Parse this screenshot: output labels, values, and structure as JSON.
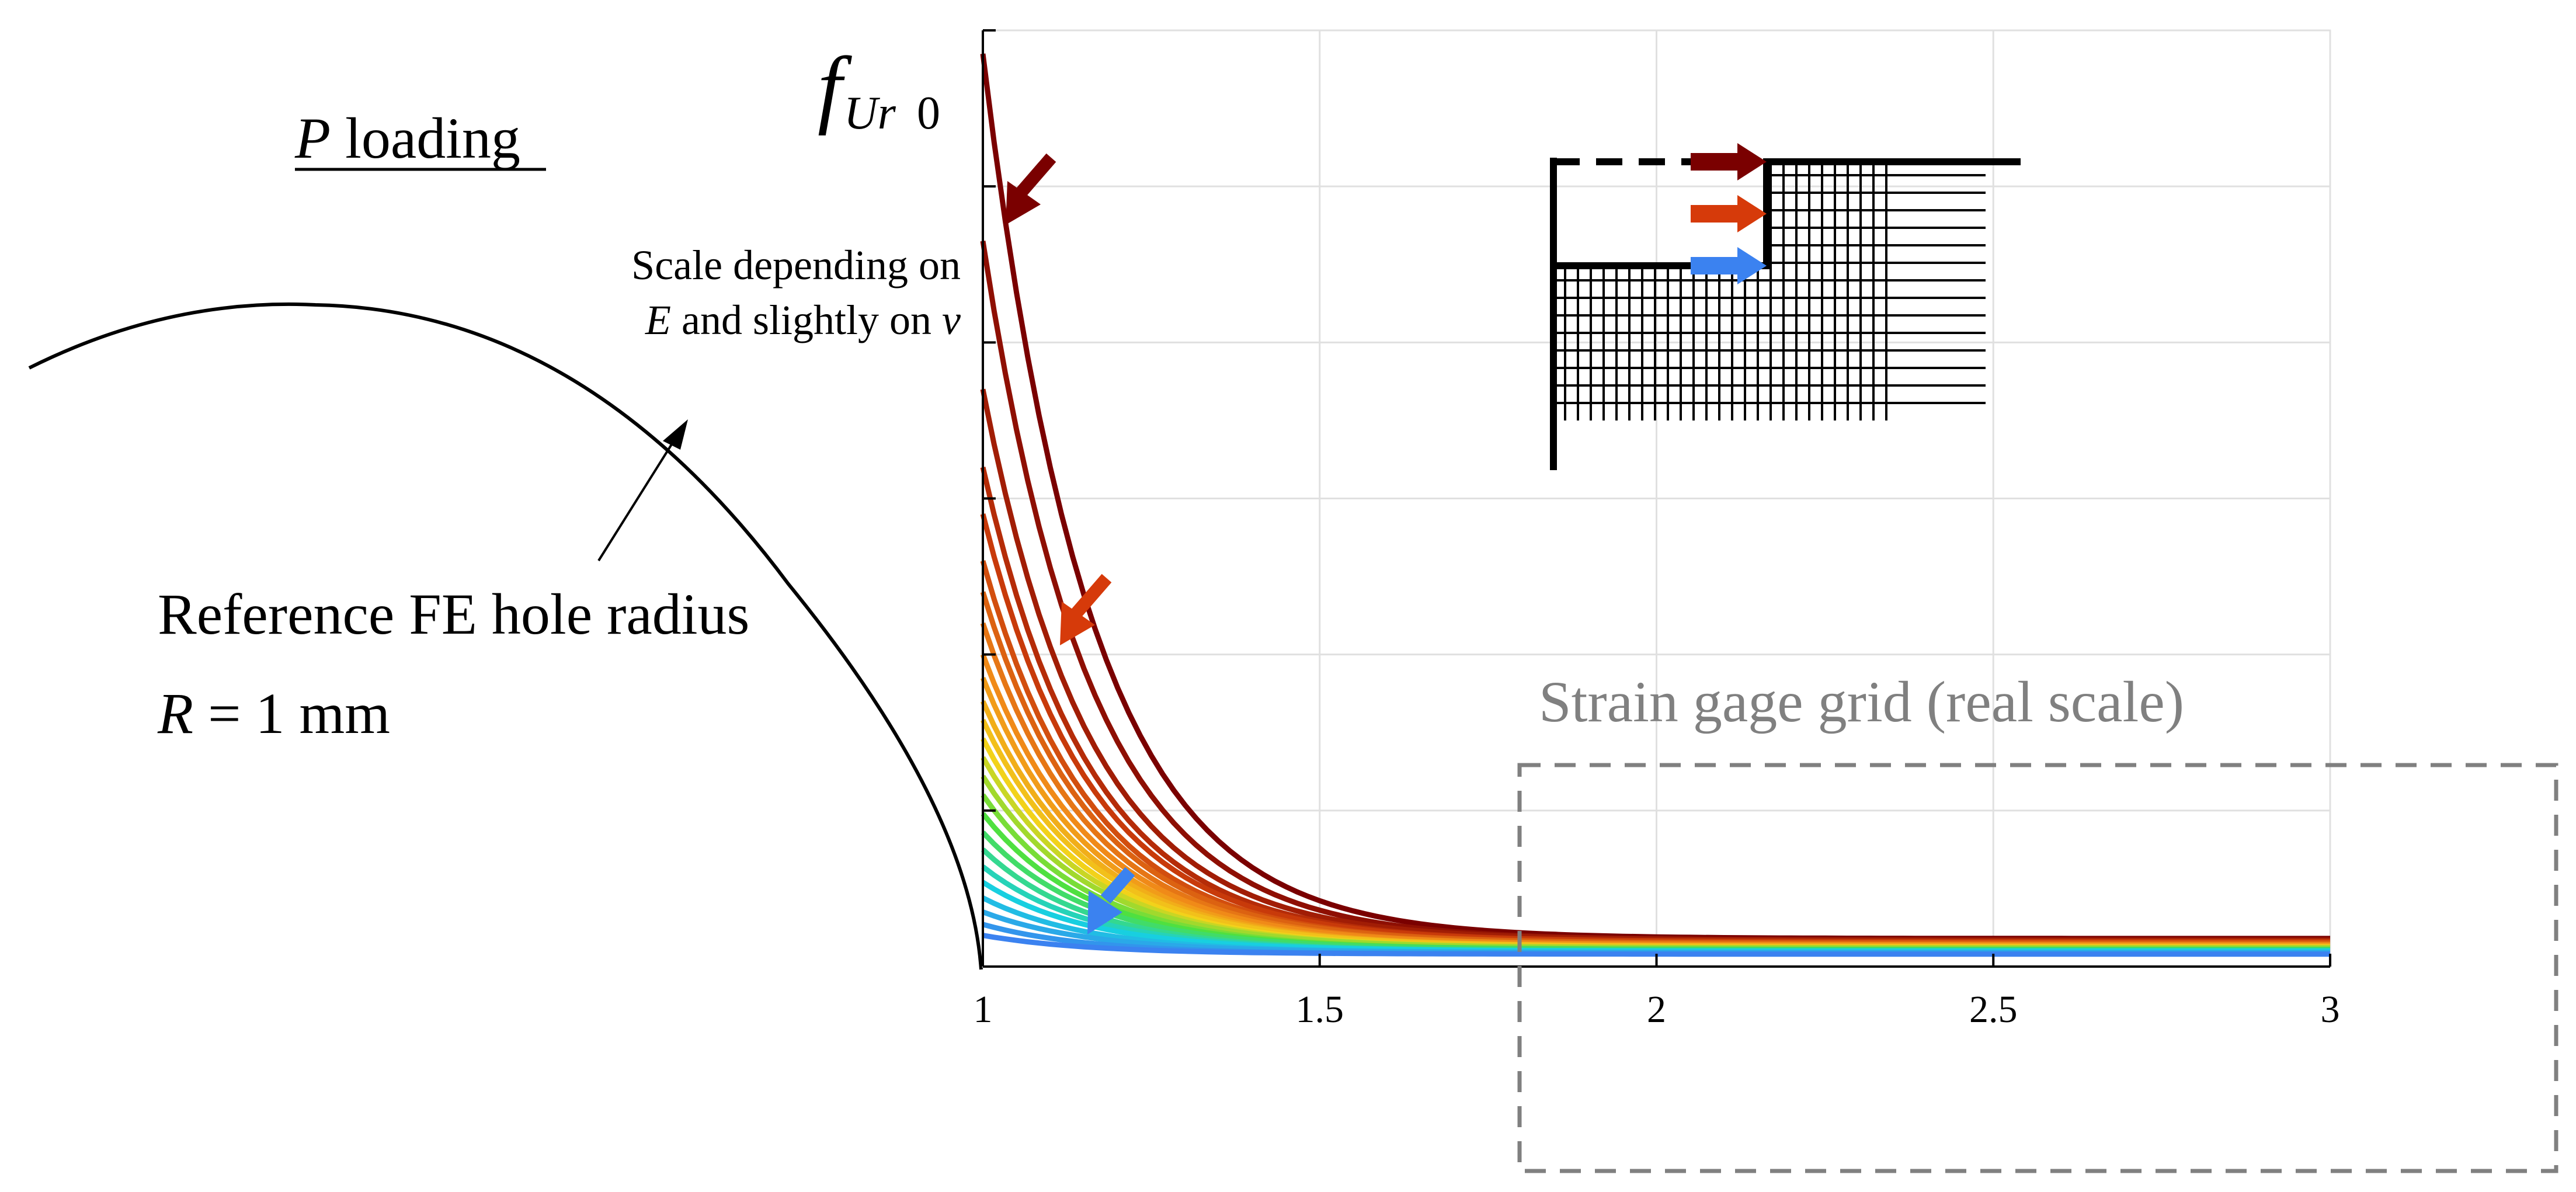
{
  "title_label": {
    "var": "P",
    "rest": " loading"
  },
  "ylabel": {
    "main": "f",
    "sub": "Ur",
    "sub2": "0"
  },
  "annotation_scale": {
    "line1": "Scale depending on",
    "line2_var": "E",
    "line2_text": " and slightly on ",
    "line2_var2": "ν"
  },
  "reference_hole": {
    "label": "Reference FE hole radius",
    "radius_var": "R",
    "radius_eq": " = 1 mm"
  },
  "strain_gage_label": "Strain gage grid (real scale)",
  "colors": {
    "dark_red": "#7a0000",
    "red": "#c83a0a",
    "orange": "#f08a18",
    "yellow": "#f2d21a",
    "green": "#4fe040",
    "cyan": "#18cfe0",
    "blue": "#3b82f0",
    "gage": "#808080",
    "grid": "#e0e0e0",
    "axis": "#000000"
  },
  "icons": [
    "down-left-arrow-icon",
    "right-arrow-icon"
  ],
  "chart_data": {
    "type": "line",
    "title": "P loading",
    "xlabel": "",
    "ylabel": "f_Ur0",
    "xlim": [
      1,
      3
    ],
    "ylim": [
      0,
      6
    ],
    "x_ticks": [
      "1",
      "1.5",
      "2",
      "2.5",
      "3"
    ],
    "y_ticks_labeled": false,
    "grid": true,
    "series_description": "Family of curves colored from dark red (top) to blue (bottom); each starts at a different value at x = 1 and converges toward ~0.1 at x = 3",
    "series": [
      {
        "name": "curve-01",
        "start": 5.85,
        "end": 0.18
      },
      {
        "name": "curve-02",
        "start": 4.65,
        "end": 0.17
      },
      {
        "name": "curve-03",
        "start": 3.7,
        "end": 0.17
      },
      {
        "name": "curve-04",
        "start": 3.2,
        "end": 0.16
      },
      {
        "name": "curve-05",
        "start": 2.9,
        "end": 0.16
      },
      {
        "name": "curve-06",
        "start": 2.6,
        "end": 0.15
      },
      {
        "name": "curve-07",
        "start": 2.4,
        "end": 0.15
      },
      {
        "name": "curve-08",
        "start": 2.2,
        "end": 0.14
      },
      {
        "name": "curve-09",
        "start": 2.0,
        "end": 0.14
      },
      {
        "name": "curve-10",
        "start": 1.85,
        "end": 0.13
      },
      {
        "name": "curve-11",
        "start": 1.7,
        "end": 0.13
      },
      {
        "name": "curve-12",
        "start": 1.58,
        "end": 0.13
      },
      {
        "name": "curve-13",
        "start": 1.46,
        "end": 0.12
      },
      {
        "name": "curve-14",
        "start": 1.34,
        "end": 0.12
      },
      {
        "name": "curve-15",
        "start": 1.22,
        "end": 0.12
      },
      {
        "name": "curve-16",
        "start": 1.1,
        "end": 0.11
      },
      {
        "name": "curve-17",
        "start": 0.98,
        "end": 0.11
      },
      {
        "name": "curve-18",
        "start": 0.86,
        "end": 0.11
      },
      {
        "name": "curve-19",
        "start": 0.75,
        "end": 0.1
      },
      {
        "name": "curve-20",
        "start": 0.64,
        "end": 0.1
      },
      {
        "name": "curve-21",
        "start": 0.54,
        "end": 0.1
      },
      {
        "name": "curve-22",
        "start": 0.44,
        "end": 0.09
      },
      {
        "name": "curve-23",
        "start": 0.35,
        "end": 0.09
      },
      {
        "name": "curve-24",
        "start": 0.27,
        "end": 0.08
      },
      {
        "name": "curve-25",
        "start": 0.2,
        "end": 0.08
      }
    ]
  }
}
